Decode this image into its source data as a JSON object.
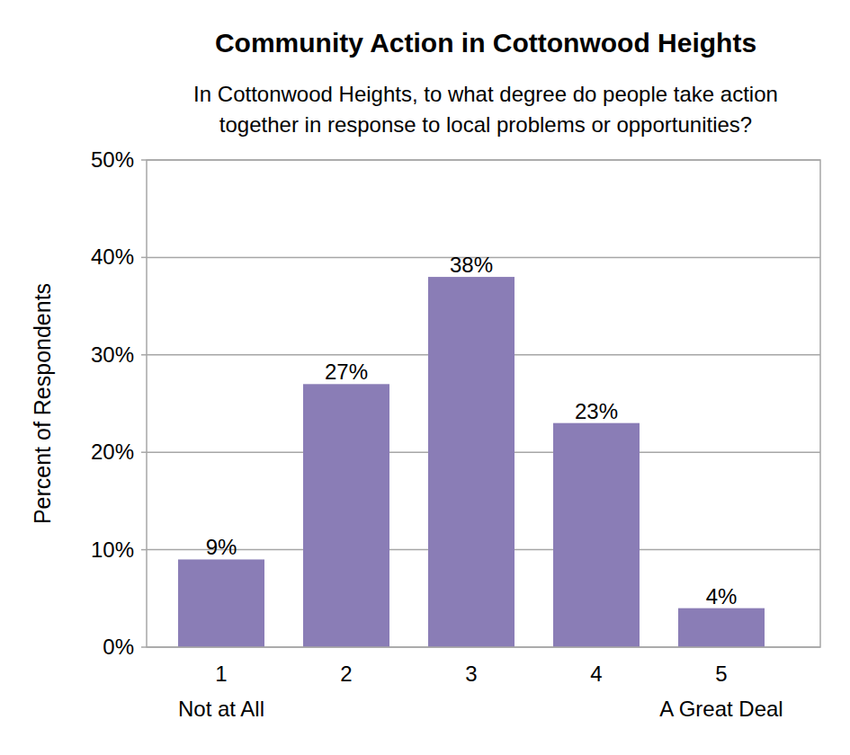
{
  "chart_data": {
    "type": "bar",
    "title": "Community Action in Cottonwood Heights",
    "subtitle": [
      "In Cottonwood Heights, to what degree do people take action",
      "together in response to local problems or opportunities?"
    ],
    "y_label": "Percent of Respondents",
    "categories": [
      "1",
      "2",
      "3",
      "4",
      "5"
    ],
    "annotations": [
      "Not at All",
      "A Great Deal"
    ],
    "values": [
      9,
      27,
      38,
      23,
      4
    ],
    "value_labels": [
      "9%",
      "27%",
      "38%",
      "23%",
      "4%"
    ],
    "color": "#8a7db6",
    "ylim": [
      0,
      50
    ],
    "yticks": [
      {
        "value": 0,
        "label": "0%"
      },
      {
        "value": 10,
        "label": "10%"
      },
      {
        "value": 20,
        "label": "20%"
      },
      {
        "value": 30,
        "label": "30%"
      },
      {
        "value": 40,
        "label": "40%"
      },
      {
        "value": 50,
        "label": "50%"
      }
    ],
    "grid": true,
    "data_labels": true
  }
}
